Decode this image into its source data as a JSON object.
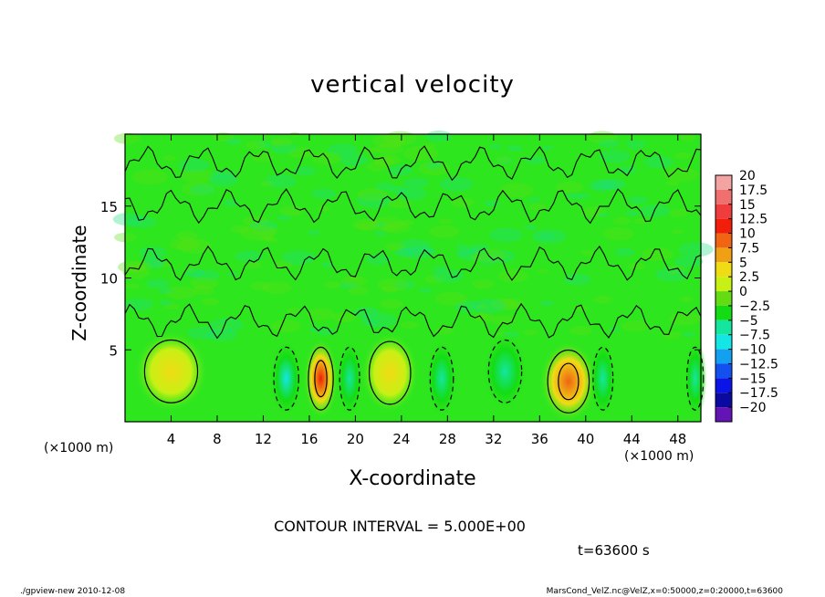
{
  "chart_data": {
    "type": "heatmap",
    "title": "vertical velocity",
    "xlabel": "X-coordinate",
    "ylabel": "Z-coordinate",
    "x_unit": "(×1000 m)",
    "z_unit": "(×1000 m)",
    "xlim": [
      0,
      50
    ],
    "ylim": [
      0,
      20
    ],
    "x_ticks": [
      "4",
      "8",
      "12",
      "16",
      "20",
      "24",
      "28",
      "32",
      "36",
      "40",
      "44",
      "48"
    ],
    "y_ticks": [
      "5",
      "10",
      "15"
    ],
    "colorbar": {
      "levels": [
        "20",
        "17.5",
        "15",
        "12.5",
        "10",
        "7.5",
        "5",
        "2.5",
        "0",
        "−2.5",
        "−5",
        "−7.5",
        "−10",
        "−12.5",
        "−15",
        "−17.5",
        "−20"
      ],
      "colors": [
        "#f4a3a3",
        "#f07070",
        "#f03c3c",
        "#f01e0a",
        "#f06414",
        "#f0a014",
        "#f0dc14",
        "#c8f014",
        "#64dc14",
        "#14dc14",
        "#14e6a0",
        "#14e6e6",
        "#14a0f0",
        "#1450f0",
        "#0a14e6",
        "#0a0aa0",
        "#6414b4"
      ]
    },
    "features": [
      {
        "x": 4,
        "z": 3.5,
        "w": 3.2,
        "value": 5
      },
      {
        "x": 17,
        "z": 3,
        "w": 1.5,
        "value": 12
      },
      {
        "x": 23,
        "z": 3.4,
        "w": 2.5,
        "value": 6
      },
      {
        "x": 38.5,
        "z": 2.8,
        "w": 2.5,
        "value": 9
      },
      {
        "x": 14,
        "z": 3,
        "w": 1.5,
        "value": -7
      },
      {
        "x": 19.5,
        "z": 3,
        "w": 1.2,
        "value": -4.5
      },
      {
        "x": 27.5,
        "z": 3,
        "w": 1.4,
        "value": -6
      },
      {
        "x": 33,
        "z": 3.5,
        "w": 2.0,
        "value": -4
      },
      {
        "x": 41.5,
        "z": 3,
        "w": 1.2,
        "value": -5
      },
      {
        "x": 49.5,
        "z": 3,
        "w": 1.0,
        "value": -4
      }
    ],
    "contour_interval": "CONTOUR INTERVAL = 5.000E+00",
    "time": "t=63600 s"
  },
  "footer": {
    "left": "./gpview-new 2010-12-08",
    "right": "MarsCond_VelZ.nc@VelZ,x=0:50000,z=0:20000,t=63600"
  }
}
